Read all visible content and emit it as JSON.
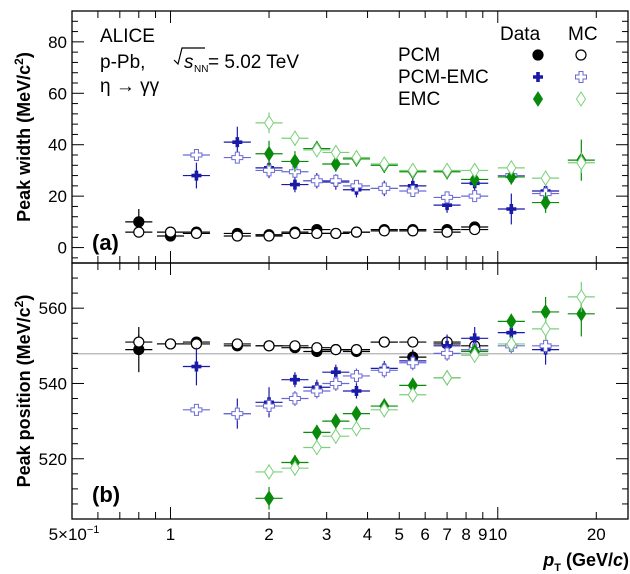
{
  "chart_data": {
    "type": "scatter",
    "x_axis": {
      "label": "p",
      "label_sub": "T",
      "label_unit_pre": " (GeV/",
      "label_unit_c": "c",
      "label_unit_post": ")",
      "scale": "log",
      "range": [
        0.5,
        25
      ],
      "tick_labels": [
        {
          "value": 0.5,
          "text": "5×10"
        },
        {
          "value": 1,
          "text": "1"
        },
        {
          "value": 2,
          "text": "2"
        },
        {
          "value": 3,
          "text": "3"
        },
        {
          "value": 4,
          "text": "4"
        },
        {
          "value": 5,
          "text": "5"
        },
        {
          "value": 6,
          "text": "6"
        },
        {
          "value": 7,
          "text": "7"
        },
        {
          "value": 8,
          "text": "8"
        },
        {
          "value": 9,
          "text": "9"
        },
        {
          "value": 10,
          "text": "10"
        },
        {
          "value": 20,
          "text": "20"
        }
      ],
      "exponent_text": "−1"
    },
    "annotations": {
      "experiment": "ALICE",
      "system_pre": "p-Pb, ",
      "sqrt_s": "s",
      "sqrt_s_sub": "NN",
      "system_post": " = 5.02 TeV",
      "decay": "η → γγ"
    },
    "legend": {
      "header_data": "Data",
      "header_mc": "MC",
      "entries": [
        {
          "label": "PCM",
          "method": "PCM"
        },
        {
          "label": "PCM-EMC",
          "method": "PCMEMC"
        },
        {
          "label": "EMC",
          "method": "EMC"
        }
      ]
    },
    "colors": {
      "PCM": "#000000",
      "PCMEMC": "#1a1aa8",
      "EMC": "#0a8a0a",
      "PCMEMC_MC": "#6a6ad6",
      "EMC_MC": "#7ad07a",
      "reference": "#b3b3b3"
    },
    "panels": [
      {
        "id": "a",
        "tag": "(a)",
        "ylabel": "Peak width (MeV/c",
        "ylabel_exp": "2",
        "ylabel_close": ")",
        "ylim": [
          -6,
          92
        ],
        "yticks": [
          0,
          20,
          40,
          60,
          80
        ],
        "series": [
          {
            "name": "PCM Data",
            "method": "PCM",
            "type": "data",
            "marker": "circle",
            "points": [
              [
                0.8,
                10,
                5
              ],
              [
                1.0,
                4.5,
                1.5
              ],
              [
                1.2,
                6,
                1
              ],
              [
                1.6,
                5.5,
                1
              ],
              [
                2.0,
                5,
                1
              ],
              [
                2.4,
                6,
                1
              ],
              [
                2.8,
                7,
                1.5
              ],
              [
                3.2,
                5.5,
                1
              ],
              [
                3.7,
                6,
                1
              ],
              [
                4.5,
                7,
                1
              ],
              [
                5.5,
                7,
                1
              ],
              [
                7.0,
                7,
                1
              ],
              [
                8.5,
                8,
                2
              ]
            ]
          },
          {
            "name": "PCM MC",
            "method": "PCM",
            "type": "mc",
            "marker": "circle",
            "points": [
              [
                0.8,
                6,
                2
              ],
              [
                1.0,
                6,
                1
              ],
              [
                1.2,
                5.5,
                1
              ],
              [
                1.6,
                4.5,
                1
              ],
              [
                2.0,
                4.5,
                1
              ],
              [
                2.4,
                5.5,
                1
              ],
              [
                2.8,
                5.5,
                1
              ],
              [
                3.2,
                5.5,
                1
              ],
              [
                3.7,
                6,
                1
              ],
              [
                4.5,
                6.5,
                1
              ],
              [
                5.5,
                6.5,
                1
              ],
              [
                7.0,
                6,
                1
              ],
              [
                8.5,
                7,
                1
              ]
            ]
          },
          {
            "name": "PCM-EMC Data",
            "method": "PCMEMC",
            "type": "data",
            "marker": "cross",
            "points": [
              [
                1.2,
                28,
                5
              ],
              [
                1.6,
                41,
                6
              ],
              [
                2.0,
                31,
                4
              ],
              [
                2.4,
                24.5,
                3
              ],
              [
                2.8,
                26,
                3
              ],
              [
                3.2,
                25.5,
                3
              ],
              [
                3.7,
                22.5,
                3
              ],
              [
                4.5,
                23,
                3
              ],
              [
                5.5,
                24,
                3
              ],
              [
                7.0,
                16.5,
                3
              ],
              [
                8.5,
                25,
                4
              ],
              [
                11,
                15,
                6
              ],
              [
                14,
                22,
                4
              ]
            ]
          },
          {
            "name": "PCM-EMC MC",
            "method": "PCMEMC",
            "type": "mc",
            "marker": "cross",
            "points": [
              [
                1.2,
                36,
                2
              ],
              [
                1.6,
                35,
                2
              ],
              [
                2.0,
                30,
                2
              ],
              [
                2.4,
                29.5,
                2
              ],
              [
                2.8,
                26,
                2
              ],
              [
                3.2,
                26,
                2
              ],
              [
                3.7,
                24,
                2
              ],
              [
                4.5,
                23,
                2
              ],
              [
                5.5,
                22,
                2
              ],
              [
                7.0,
                19.5,
                2
              ],
              [
                8.5,
                20,
                2
              ],
              [
                11,
                28,
                3
              ],
              [
                14,
                21,
                3
              ]
            ]
          },
          {
            "name": "EMC Data",
            "method": "EMC",
            "type": "data",
            "marker": "diamond",
            "points": [
              [
                2.0,
                36.5,
                5
              ],
              [
                2.4,
                33.5,
                4
              ],
              [
                2.8,
                38.5,
                3
              ],
              [
                3.2,
                32.5,
                3
              ],
              [
                3.7,
                34.5,
                3
              ],
              [
                4.5,
                32,
                3
              ],
              [
                5.5,
                29.5,
                3
              ],
              [
                7.0,
                29.5,
                3
              ],
              [
                8.5,
                26.5,
                3
              ],
              [
                11,
                27.5,
                3
              ],
              [
                14,
                17.5,
                4
              ],
              [
                18,
                34,
                8
              ]
            ]
          },
          {
            "name": "EMC MC",
            "method": "EMC",
            "type": "mc",
            "marker": "diamond",
            "points": [
              [
                2.0,
                48.5,
                4
              ],
              [
                2.4,
                42.5,
                3
              ],
              [
                2.8,
                38,
                2
              ],
              [
                3.2,
                37,
                2
              ],
              [
                3.7,
                35,
                2
              ],
              [
                4.5,
                32.5,
                2
              ],
              [
                5.5,
                30,
                2
              ],
              [
                7.0,
                30,
                2
              ],
              [
                8.5,
                30,
                2
              ],
              [
                11,
                31,
                2
              ],
              [
                14,
                27,
                3
              ],
              [
                18,
                33,
                4
              ]
            ]
          }
        ]
      },
      {
        "id": "b",
        "tag": "(b)",
        "ylabel": "Peak position (MeV/c",
        "ylabel_exp": "2",
        "ylabel_close": ")",
        "ylim": [
          504,
          572
        ],
        "yticks": [
          520,
          540,
          560
        ],
        "reference_line": 547.9,
        "series": [
          {
            "name": "PCM Data",
            "method": "PCM",
            "type": "data",
            "marker": "circle",
            "points": [
              [
                0.8,
                549,
                6
              ],
              [
                1.0,
                550.5,
                1
              ],
              [
                1.2,
                551,
                1
              ],
              [
                1.6,
                550,
                1
              ],
              [
                2.0,
                550,
                1
              ],
              [
                2.4,
                549.5,
                1
              ],
              [
                2.8,
                548.5,
                1
              ],
              [
                3.2,
                549,
                1
              ],
              [
                3.7,
                548.5,
                1
              ],
              [
                4.5,
                551,
                1
              ],
              [
                5.5,
                547,
                2
              ],
              [
                7.0,
                550.5,
                2
              ],
              [
                8.5,
                549,
                3
              ]
            ]
          },
          {
            "name": "PCM MC",
            "method": "PCM",
            "type": "mc",
            "marker": "circle",
            "points": [
              [
                0.8,
                551,
                2
              ],
              [
                1.0,
                550.5,
                1
              ],
              [
                1.2,
                550.5,
                1
              ],
              [
                1.6,
                550.5,
                1
              ],
              [
                2.0,
                550,
                1
              ],
              [
                2.4,
                550,
                1
              ],
              [
                2.8,
                549.5,
                1
              ],
              [
                3.2,
                549,
                1
              ],
              [
                3.7,
                549,
                1
              ],
              [
                4.5,
                551,
                1
              ],
              [
                5.5,
                551,
                1
              ],
              [
                7.0,
                551,
                1
              ],
              [
                8.5,
                550,
                1
              ]
            ]
          },
          {
            "name": "PCM-EMC Data",
            "method": "PCMEMC",
            "type": "data",
            "marker": "cross",
            "points": [
              [
                1.2,
                544.5,
                5
              ],
              [
                1.6,
                532,
                4
              ],
              [
                2.0,
                535,
                4
              ],
              [
                2.4,
                541,
                2
              ],
              [
                2.8,
                539,
                2
              ],
              [
                3.2,
                543,
                2
              ],
              [
                3.7,
                538,
                2
              ],
              [
                4.5,
                544,
                2
              ],
              [
                5.5,
                546,
                2
              ],
              [
                7.0,
                550,
                3
              ],
              [
                8.5,
                552,
                3
              ],
              [
                11,
                553.5,
                4
              ],
              [
                14,
                549,
                4
              ]
            ]
          },
          {
            "name": "PCM-EMC MC",
            "method": "PCMEMC",
            "type": "mc",
            "marker": "cross",
            "points": [
              [
                1.2,
                533,
                1.5
              ],
              [
                1.6,
                532,
                2
              ],
              [
                2.0,
                534,
                2
              ],
              [
                2.4,
                536,
                2
              ],
              [
                2.8,
                538,
                2
              ],
              [
                3.2,
                540,
                2
              ],
              [
                3.7,
                542,
                2
              ],
              [
                4.5,
                543.5,
                2
              ],
              [
                5.5,
                545.5,
                2
              ],
              [
                7.0,
                548,
                2
              ],
              [
                8.5,
                549,
                2
              ],
              [
                11,
                550,
                2
              ],
              [
                14,
                550,
                2
              ]
            ]
          },
          {
            "name": "EMC Data",
            "method": "EMC",
            "type": "data",
            "marker": "diamond",
            "points": [
              [
                2.0,
                509.5,
                3
              ],
              [
                2.4,
                519,
                2
              ],
              [
                2.8,
                527,
                2
              ],
              [
                3.2,
                530,
                2
              ],
              [
                3.7,
                532,
                2
              ],
              [
                4.5,
                534,
                2
              ],
              [
                5.5,
                539.5,
                2
              ],
              [
                7.0,
                541.5,
                2
              ],
              [
                8.5,
                548.5,
                2
              ],
              [
                11,
                556.5,
                2
              ],
              [
                14,
                559,
                4
              ],
              [
                18,
                558.5,
                6
              ]
            ]
          },
          {
            "name": "EMC MC",
            "method": "EMC",
            "type": "mc",
            "marker": "diamond",
            "points": [
              [
                2.0,
                516.5,
                2
              ],
              [
                2.4,
                517.5,
                2
              ],
              [
                2.8,
                523,
                2
              ],
              [
                3.2,
                526,
                2
              ],
              [
                3.7,
                528,
                2
              ],
              [
                4.5,
                533,
                2
              ],
              [
                5.5,
                537,
                2
              ],
              [
                7.0,
                541.5,
                2
              ],
              [
                8.5,
                547.5,
                2
              ],
              [
                11,
                550.5,
                2
              ],
              [
                14,
                554.5,
                3
              ],
              [
                18,
                563,
                4
              ]
            ]
          }
        ]
      }
    ]
  }
}
